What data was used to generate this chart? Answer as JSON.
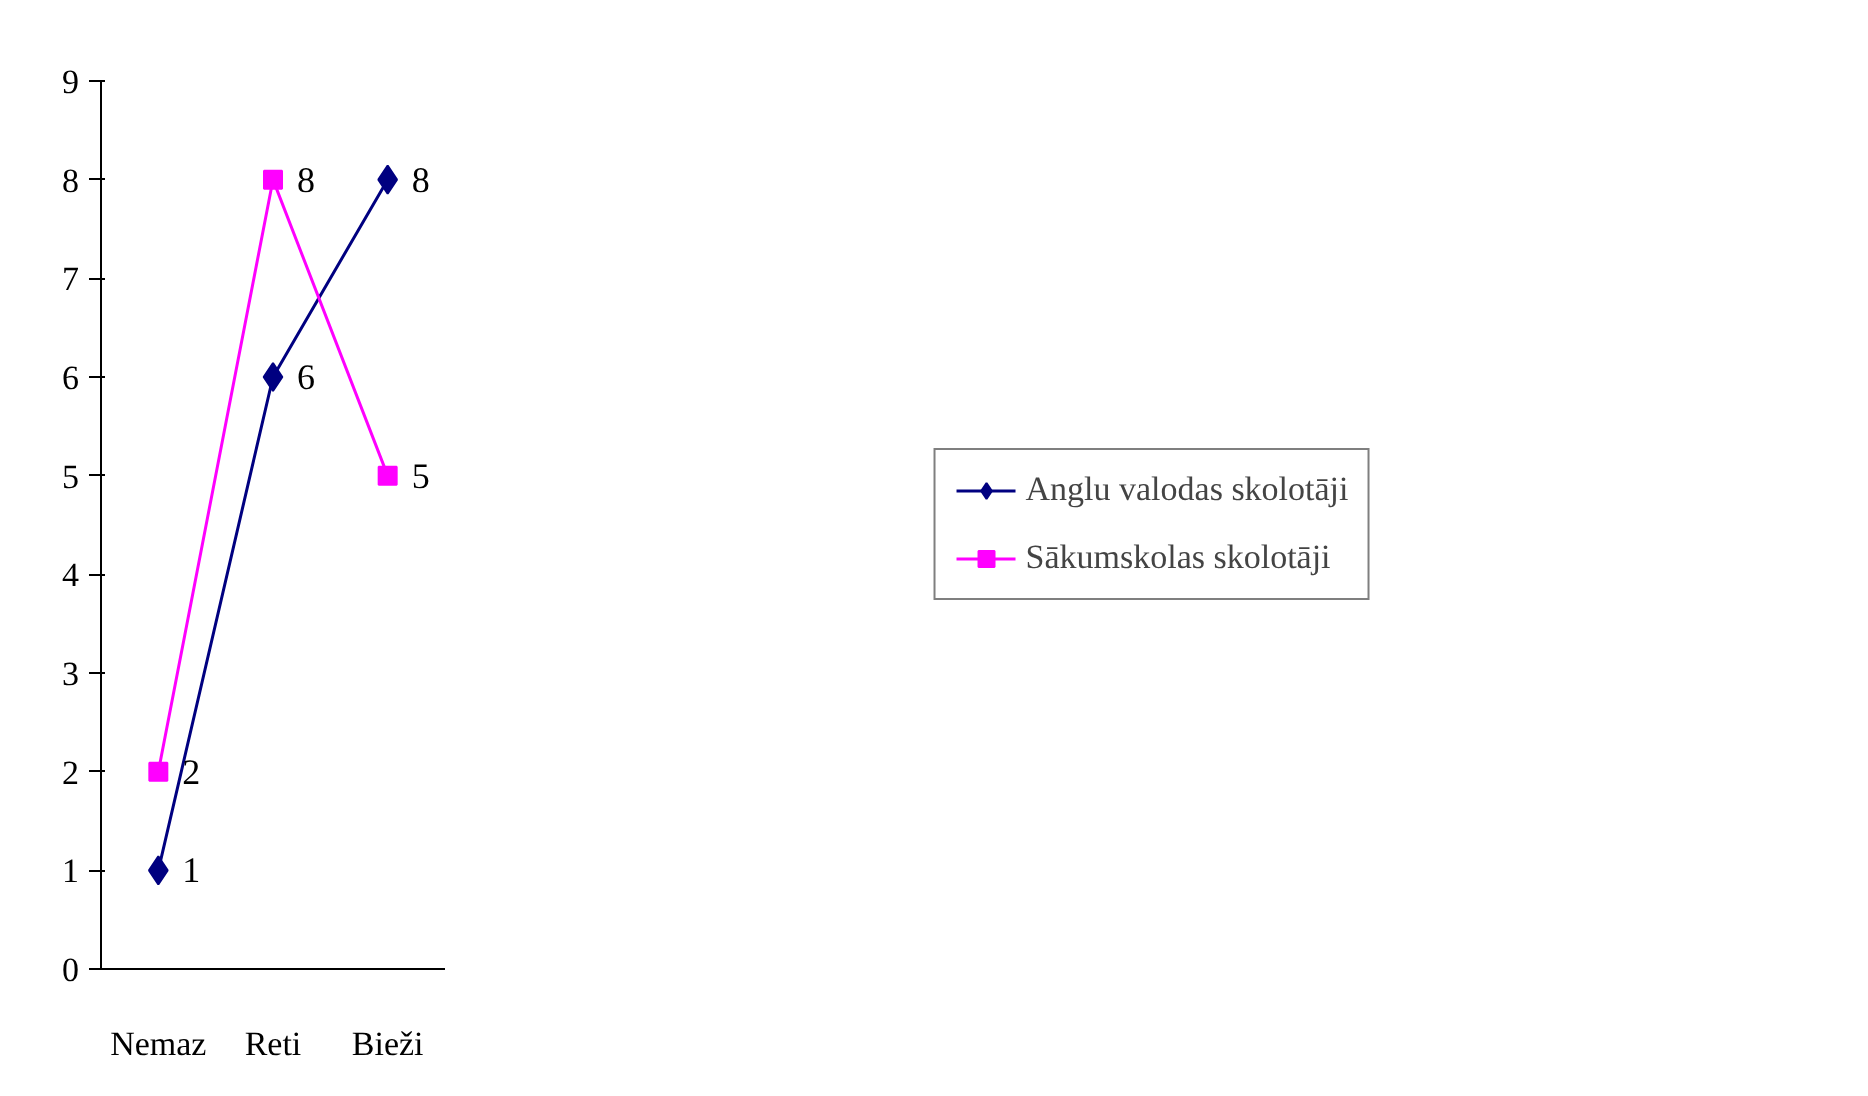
{
  "chart_data": {
    "type": "line",
    "categories": [
      "Nemaz",
      "Reti",
      "Bieži"
    ],
    "series": [
      {
        "name": "Anglu valodas skolotāji",
        "color": "#000080",
        "values": [
          1,
          6,
          8
        ],
        "marker": "diamond"
      },
      {
        "name": "Sākumskolas skolotāji",
        "color": "#ff00ff",
        "values": [
          2,
          8,
          5
        ],
        "marker": "square"
      }
    ],
    "ylim": [
      0,
      9
    ],
    "yticks": [
      0,
      1,
      2,
      3,
      4,
      5,
      6,
      7,
      8,
      9
    ],
    "data_labels": true,
    "legend": "right",
    "grid": false
  }
}
